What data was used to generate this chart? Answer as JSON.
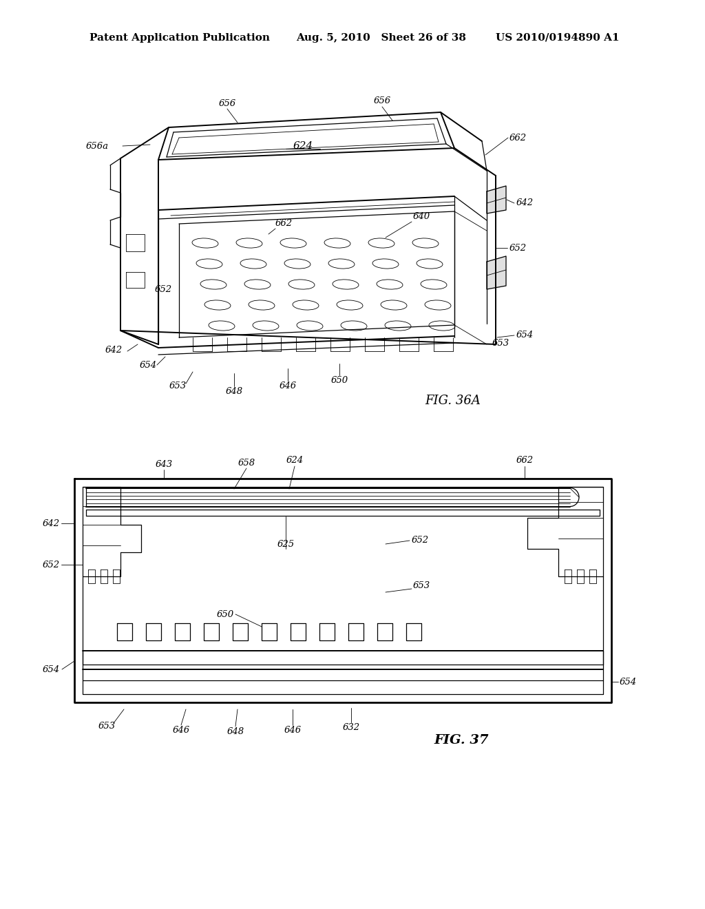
{
  "bg_color": "#ffffff",
  "line_color": "#000000",
  "header_left": "Patent Application Publication",
  "header_mid": "Aug. 5, 2010   Sheet 26 of 38",
  "header_right": "US 2010/0194890 A1",
  "fig36a_label": "FIG. 36A",
  "fig37_label": "FIG. 37",
  "font_size_header": 11,
  "font_size_labels": 9.5,
  "font_size_fig": 13
}
